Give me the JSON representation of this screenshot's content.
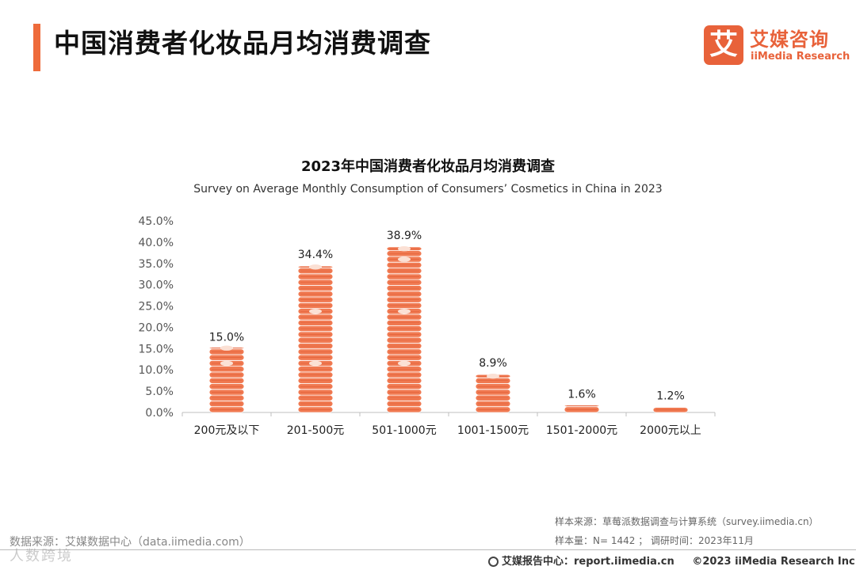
{
  "header": {
    "title": "中国消费者化妆品月均消费调查"
  },
  "logo": {
    "mark": "艾",
    "name_cn": "艾媒咨询",
    "name_en": "iiMedia Research"
  },
  "colors": {
    "accent": "#ee6b3b",
    "coin": "#f07a52",
    "coin_dark": "#e05a32"
  },
  "chart_data": {
    "type": "bar",
    "title": "2023年中国消费者化妆品月均消费调查",
    "subtitle": "Survey on Average Monthly Consumption of Consumers’   Cosmetics in China in 2023",
    "categories": [
      "200元及以下",
      "201-500元",
      "501-1000元",
      "1001-1500元",
      "1501-2000元",
      "2000元以上"
    ],
    "values": [
      15.0,
      34.4,
      38.9,
      8.9,
      1.6,
      1.2
    ],
    "value_labels": [
      "15.0%",
      "34.4%",
      "38.9%",
      "8.9%",
      "1.6%",
      "1.2%"
    ],
    "ylim": [
      0,
      45
    ],
    "yticks": [
      "0.0%",
      "5.0%",
      "10.0%",
      "15.0%",
      "20.0%",
      "25.0%",
      "30.0%",
      "35.0%",
      "40.0%",
      "45.0%"
    ],
    "grid": false,
    "legend": "none",
    "mark_style": "stacked coins"
  },
  "footer": {
    "source_left": "数据来源：艾媒数据中心（data.iimedia.com）",
    "sample_source": "样本来源：草莓派数据调查与计算系统（survey.iimedia.cn）",
    "sample_info": "样本量：N= 1442 ；  调研时间：2023年11月",
    "report_center": "艾媒报告中心：report.iimedia.cn",
    "copyright": "©2023  iiMedia Research  Inc",
    "watermark": "人数跨境"
  }
}
